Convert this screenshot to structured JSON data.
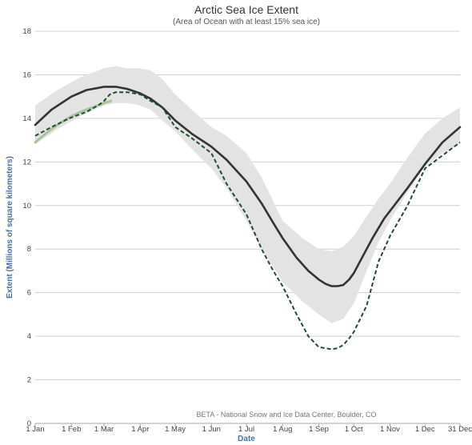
{
  "chart_data": {
    "type": "line",
    "title": "Arctic Sea Ice Extent",
    "subtitle": "(Area of Ocean with at least 15% sea ice)",
    "xlabel": "Date",
    "ylabel": "Extent (Millions of square kilometers)",
    "credit": "BETA - National Snow and Ice Data Center, Boulder, CO",
    "ylim": [
      0,
      18
    ],
    "y_ticks": [
      "0",
      "2",
      "4",
      "6",
      "8",
      "10",
      "12",
      "14",
      "16",
      "18"
    ],
    "x_ticks": [
      {
        "label": "1 Jan",
        "day": 1
      },
      {
        "label": "1 Feb",
        "day": 32
      },
      {
        "label": "1 Mar",
        "day": 60
      },
      {
        "label": "1 Apr",
        "day": 91
      },
      {
        "label": "1 May",
        "day": 121
      },
      {
        "label": "1 Jun",
        "day": 152
      },
      {
        "label": "1 Jul",
        "day": 182
      },
      {
        "label": "1 Aug",
        "day": 213
      },
      {
        "label": "1 Sep",
        "day": 244
      },
      {
        "label": "1 Oct",
        "day": 274
      },
      {
        "label": "1 Nov",
        "day": 305
      },
      {
        "label": "1 Dec",
        "day": 335
      },
      {
        "label": "31 Dec",
        "day": 365
      }
    ],
    "grid": true,
    "colors": {
      "band": "#e3e3e3",
      "average": "#333333",
      "dashed": "#1f4d2e",
      "current": "#a9c49a"
    },
    "band": {
      "x": [
        1,
        20,
        40,
        60,
        70,
        80,
        90,
        100,
        110,
        121,
        135,
        152,
        165,
        182,
        195,
        213,
        230,
        244,
        255,
        265,
        274,
        285,
        295,
        305,
        320,
        335,
        350,
        365
      ],
      "upper": [
        14.6,
        15.3,
        15.9,
        16.3,
        16.4,
        16.3,
        16.3,
        16.2,
        15.8,
        15.1,
        14.4,
        13.6,
        13.2,
        12.4,
        11.3,
        9.3,
        8.5,
        8.0,
        7.9,
        8.1,
        8.6,
        9.5,
        10.3,
        11.0,
        12.2,
        13.3,
        14.0,
        14.5
      ],
      "lower": [
        12.8,
        13.5,
        14.1,
        14.6,
        14.7,
        14.7,
        14.6,
        14.4,
        13.9,
        13.4,
        12.6,
        11.7,
        10.8,
        9.3,
        8.0,
        6.5,
        5.6,
        5.0,
        4.6,
        4.8,
        5.5,
        7.0,
        8.3,
        9.3,
        10.6,
        11.8,
        12.4,
        12.8
      ]
    },
    "series": [
      {
        "x": [
          1,
          15,
          32,
          45,
          55,
          60,
          70,
          80,
          91,
          100,
          110,
          121,
          135,
          152,
          165,
          182,
          195,
          205,
          213,
          225,
          235,
          244,
          250,
          255,
          260,
          265,
          270,
          274,
          280,
          290,
          300,
          310,
          320,
          335,
          350,
          365
        ],
        "values": [
          13.7,
          14.4,
          15.0,
          15.3,
          15.4,
          15.45,
          15.45,
          15.35,
          15.15,
          14.9,
          14.5,
          13.9,
          13.3,
          12.7,
          12.1,
          11.1,
          10.1,
          9.2,
          8.5,
          7.6,
          7.0,
          6.6,
          6.4,
          6.3,
          6.3,
          6.35,
          6.6,
          6.9,
          7.5,
          8.5,
          9.4,
          10.1,
          10.8,
          11.9,
          12.9,
          13.6
        ]
      },
      {
        "x": [
          1,
          15,
          30,
          45,
          55,
          60,
          65,
          70,
          80,
          91,
          100,
          110,
          121,
          135,
          152,
          165,
          182,
          195,
          205,
          213,
          225,
          235,
          244,
          250,
          255,
          260,
          265,
          270,
          274,
          285,
          295,
          305,
          320,
          335,
          350,
          365
        ],
        "values": [
          13.2,
          13.6,
          14.0,
          14.3,
          14.6,
          14.8,
          15.1,
          15.2,
          15.2,
          15.1,
          14.8,
          14.5,
          13.6,
          13.1,
          12.4,
          11.0,
          9.6,
          8.0,
          7.0,
          6.3,
          5.0,
          4.0,
          3.5,
          3.45,
          3.4,
          3.45,
          3.6,
          3.9,
          4.2,
          5.4,
          7.4,
          8.6,
          10.0,
          11.7,
          12.3,
          12.9
        ]
      },
      {
        "x": [
          1,
          10,
          20,
          32,
          40,
          50,
          60,
          66
        ],
        "values": [
          12.9,
          13.3,
          13.7,
          14.1,
          14.3,
          14.5,
          14.7,
          14.8
        ]
      }
    ]
  }
}
